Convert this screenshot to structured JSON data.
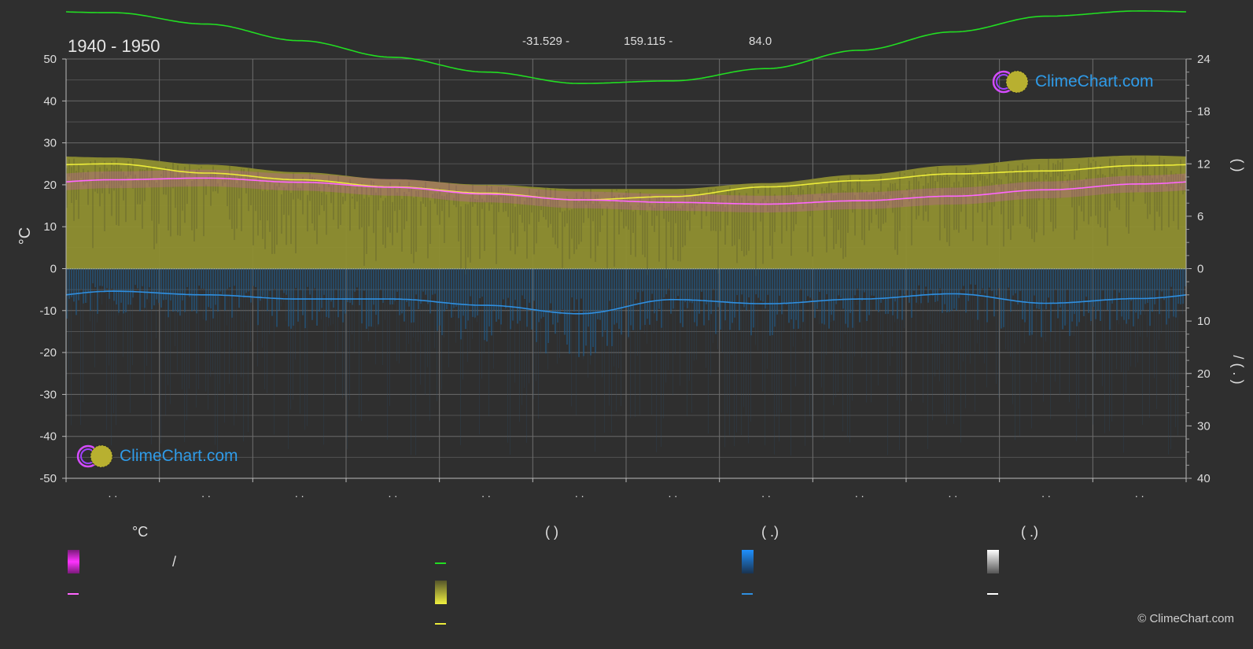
{
  "header": {
    "period": "1940 - 1950",
    "latitude": "-31.529 -",
    "longitude": "159.115 -",
    "elevation": "84.0"
  },
  "logo": {
    "text": "ClimeChart.com"
  },
  "copyright": "© ClimeChart.com",
  "chart_data": {
    "type": "line",
    "months": 12,
    "month_labels": [
      ". .",
      ". .",
      ". .",
      ". .",
      ". .",
      ". .",
      ". .",
      ". .",
      ". .",
      ". .",
      ". .",
      ". ."
    ],
    "left_axis": {
      "label": "°C",
      "ylim": [
        -50,
        50
      ],
      "ticks": [
        50,
        40,
        30,
        20,
        10,
        0,
        -10,
        -20,
        -30,
        -40,
        -50
      ]
    },
    "right_axis_top": {
      "label": "(  )",
      "ylim": [
        0,
        24
      ],
      "ticks": [
        24,
        18,
        12,
        6,
        0
      ]
    },
    "right_axis_bottom": {
      "label": "/  ( . )",
      "ylim": [
        0,
        40
      ],
      "ticks": [
        0,
        10,
        20,
        30,
        40
      ]
    },
    "grid": true,
    "series": [
      {
        "name": "",
        "color": "#22dd22",
        "axis": "sun",
        "values": [
          29.3,
          28.0,
          26.1,
          24.2,
          22.5,
          21.2,
          21.5,
          22.9,
          25.0,
          27.1,
          28.9,
          29.5
        ]
      },
      {
        "name": "",
        "color": "#ecec3a",
        "axis": "temp",
        "values": [
          25.0,
          22.8,
          21.2,
          19.5,
          18.0,
          16.4,
          17.2,
          19.5,
          21.0,
          22.6,
          23.3,
          24.6
        ]
      },
      {
        "name": "",
        "color": "#ff66ff",
        "axis": "temp",
        "values": [
          21.2,
          21.6,
          20.6,
          19.4,
          17.8,
          16.4,
          15.8,
          15.4,
          16.2,
          17.3,
          18.8,
          20.2
        ]
      },
      {
        "name": "",
        "color": "#2f8fe0",
        "axis": "precip",
        "values": [
          4.3,
          5.0,
          5.8,
          5.8,
          7.0,
          8.6,
          5.9,
          6.7,
          5.8,
          4.8,
          6.6,
          5.7
        ]
      }
    ],
    "daylight_band_top_temp": [
      26.5,
      24.8,
      23.0,
      21.3,
      20.0,
      19.0,
      19.0,
      20.4,
      22.4,
      24.6,
      26.2,
      27.0
    ]
  },
  "legend": {
    "col1": {
      "header": "°C",
      "item1_suffix": "/"
    },
    "col2": {
      "header": "(        )"
    },
    "col3": {
      "header": "(   .)"
    },
    "col4": {
      "header": "(   .)"
    }
  }
}
